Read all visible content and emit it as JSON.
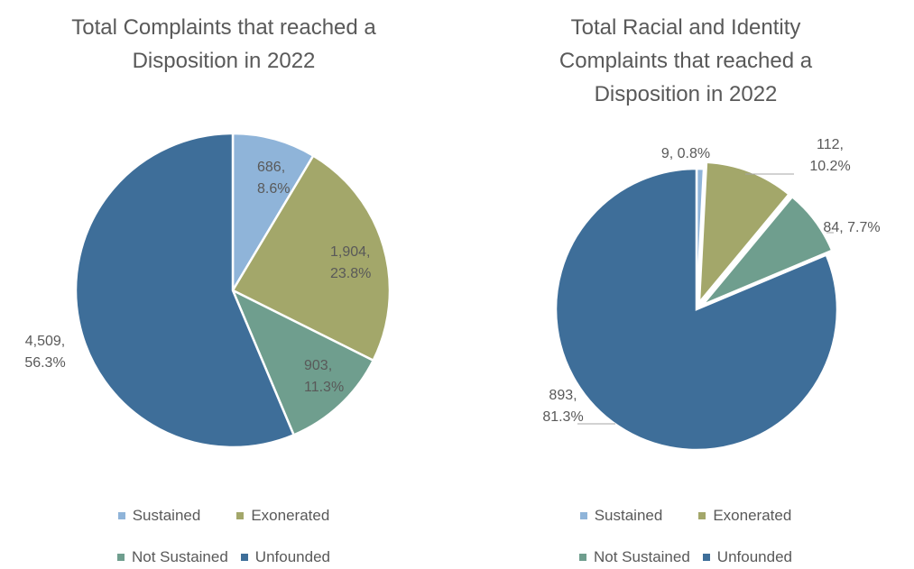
{
  "colors": {
    "sustained": "#8fb4d9",
    "exonerated": "#a3a76a",
    "not_sustained": "#6f9e8e",
    "unfounded": "#3e6e99",
    "text": "#595959"
  },
  "chart_data": [
    {
      "type": "pie",
      "title_lines": [
        "Total Complaints that reached a",
        "Disposition in 2022"
      ],
      "slices": [
        {
          "name": "Sustained",
          "value": 686,
          "percent": "8.6%",
          "label_lines": [
            "686,",
            "8.6%"
          ]
        },
        {
          "name": "Exonerated",
          "value": 1904,
          "percent": "23.8%",
          "label_lines": [
            "1,904,",
            "23.8%"
          ]
        },
        {
          "name": "Not Sustained",
          "value": 903,
          "percent": "11.3%",
          "label_lines": [
            "903,",
            "11.3%"
          ]
        },
        {
          "name": "Unfounded",
          "value": 4509,
          "percent": "56.3%",
          "label_lines": [
            "4,509,",
            "56.3%"
          ]
        }
      ],
      "legend": {
        "placement": "bottom",
        "rows": [
          [
            "Sustained",
            "Exonerated"
          ],
          [
            "Not Sustained",
            "Unfounded"
          ]
        ]
      }
    },
    {
      "type": "pie",
      "title_lines": [
        "Total Racial and Identity",
        "Complaints that reached a",
        "Disposition in 2022"
      ],
      "slices": [
        {
          "name": "Sustained",
          "value": 9,
          "percent": "0.8%",
          "label_lines": [
            "9, 0.8%"
          ]
        },
        {
          "name": "Exonerated",
          "value": 112,
          "percent": "10.2%",
          "label_lines": [
            "112,",
            "10.2%"
          ]
        },
        {
          "name": "Not Sustained",
          "value": 84,
          "percent": "7.7%",
          "label_lines": [
            "84, 7.7%"
          ]
        },
        {
          "name": "Unfounded",
          "value": 893,
          "percent": "81.3%",
          "label_lines": [
            "893,",
            "81.3%"
          ]
        }
      ],
      "legend": {
        "placement": "bottom",
        "rows": [
          [
            "Sustained",
            "Exonerated"
          ],
          [
            "Not Sustained",
            "Unfounded"
          ]
        ]
      }
    }
  ]
}
